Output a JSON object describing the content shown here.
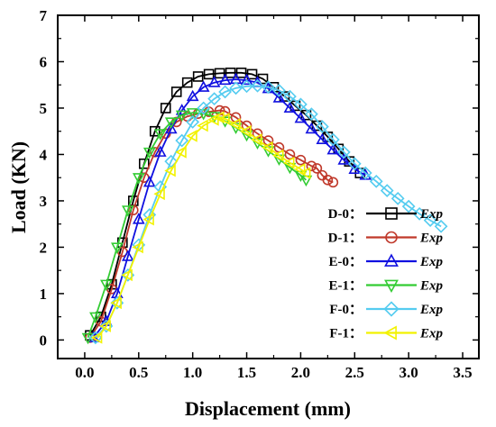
{
  "chart_data": {
    "type": "line",
    "xlabel": "Displacement (mm)",
    "ylabel": "Load (KN)",
    "xlim": [
      -0.25,
      3.65
    ],
    "ylim": [
      -0.4,
      7
    ],
    "xticks": [
      "0.0",
      "0.5",
      "1.0",
      "1.5",
      "2.0",
      "2.5",
      "3.0",
      "3.5"
    ],
    "yticks": [
      "0",
      "1",
      "2",
      "3",
      "4",
      "5",
      "6",
      "7"
    ],
    "legend_suffix": "Exp",
    "legend_position": "right",
    "grid": false,
    "series": [
      {
        "name": "D-0：",
        "color": "#000000",
        "marker": "square",
        "x": [
          0.05,
          0.15,
          0.25,
          0.35,
          0.45,
          0.55,
          0.65,
          0.75,
          0.85,
          0.95,
          1.05,
          1.15,
          1.25,
          1.35,
          1.45,
          1.55,
          1.65,
          1.75,
          1.85,
          1.95,
          2.05,
          2.15,
          2.25,
          2.35,
          2.45,
          2.55
        ],
        "y": [
          0.1,
          0.5,
          1.2,
          2.1,
          3.0,
          3.8,
          4.5,
          5.0,
          5.35,
          5.55,
          5.68,
          5.73,
          5.75,
          5.76,
          5.76,
          5.73,
          5.63,
          5.45,
          5.25,
          5.05,
          4.85,
          4.62,
          4.38,
          4.12,
          3.85,
          3.6
        ]
      },
      {
        "name": "D-1：",
        "color": "#c0392b",
        "marker": "circle",
        "x": [
          0.05,
          0.15,
          0.25,
          0.35,
          0.45,
          0.55,
          0.65,
          0.75,
          0.85,
          0.95,
          1.05,
          1.15,
          1.25,
          1.3,
          1.4,
          1.5,
          1.6,
          1.7,
          1.8,
          1.9,
          2.0,
          2.1,
          2.15,
          2.2,
          2.25,
          2.3
        ],
        "y": [
          0.05,
          0.4,
          1.1,
          1.9,
          2.8,
          3.5,
          4.05,
          4.45,
          4.7,
          4.82,
          4.88,
          4.92,
          4.95,
          4.93,
          4.8,
          4.62,
          4.45,
          4.3,
          4.15,
          4.0,
          3.88,
          3.75,
          3.7,
          3.55,
          3.45,
          3.4
        ]
      },
      {
        "name": "E-0：",
        "color": "#1010e0",
        "marker": "triangle-up",
        "x": [
          0.08,
          0.2,
          0.3,
          0.4,
          0.5,
          0.6,
          0.7,
          0.8,
          0.9,
          1.0,
          1.1,
          1.2,
          1.3,
          1.4,
          1.5,
          1.6,
          1.7,
          1.8,
          1.9,
          2.0,
          2.1,
          2.2,
          2.3,
          2.4,
          2.5,
          2.6
        ],
        "y": [
          0.05,
          0.4,
          1.0,
          1.8,
          2.6,
          3.4,
          4.05,
          4.55,
          4.95,
          5.25,
          5.45,
          5.55,
          5.6,
          5.62,
          5.6,
          5.55,
          5.42,
          5.22,
          5.0,
          4.78,
          4.55,
          4.32,
          4.1,
          3.88,
          3.68,
          3.55
        ]
      },
      {
        "name": "E-1：",
        "color": "#33cc33",
        "marker": "triangle-down",
        "x": [
          0.03,
          0.1,
          0.2,
          0.3,
          0.4,
          0.5,
          0.6,
          0.7,
          0.8,
          0.9,
          1.0,
          1.1,
          1.2,
          1.3,
          1.4,
          1.5,
          1.6,
          1.7,
          1.8,
          1.9,
          2.0,
          2.05
        ],
        "y": [
          0.05,
          0.5,
          1.2,
          2.0,
          2.8,
          3.5,
          4.05,
          4.45,
          4.7,
          4.85,
          4.9,
          4.88,
          4.82,
          4.72,
          4.58,
          4.42,
          4.25,
          4.08,
          3.9,
          3.72,
          3.55,
          3.45
        ]
      },
      {
        "name": "F-0：",
        "color": "#55ccf0",
        "marker": "diamond",
        "x": [
          0.1,
          0.2,
          0.3,
          0.4,
          0.5,
          0.6,
          0.7,
          0.8,
          0.9,
          1.0,
          1.1,
          1.2,
          1.3,
          1.4,
          1.5,
          1.6,
          1.7,
          1.8,
          1.9,
          2.0,
          2.1,
          2.2,
          2.3,
          2.4,
          2.5,
          2.6,
          2.7,
          2.8,
          2.9,
          3.0,
          3.1,
          3.2,
          3.3
        ],
        "y": [
          0.05,
          0.3,
          0.8,
          1.4,
          2.05,
          2.7,
          3.3,
          3.85,
          4.3,
          4.7,
          5.0,
          5.2,
          5.35,
          5.43,
          5.47,
          5.48,
          5.45,
          5.38,
          5.25,
          5.08,
          4.87,
          4.6,
          4.32,
          4.05,
          3.8,
          3.6,
          3.42,
          3.22,
          3.05,
          2.88,
          2.72,
          2.58,
          2.45
        ]
      },
      {
        "name": "F-1：",
        "color": "#f2f200",
        "marker": "triangle-left",
        "x": [
          0.12,
          0.2,
          0.3,
          0.4,
          0.5,
          0.6,
          0.7,
          0.8,
          0.9,
          1.0,
          1.1,
          1.2,
          1.25,
          1.3,
          1.4,
          1.5,
          1.6,
          1.7,
          1.8,
          1.9,
          2.0,
          2.05
        ],
        "y": [
          0.05,
          0.3,
          0.8,
          1.4,
          2.0,
          2.6,
          3.15,
          3.65,
          4.05,
          4.4,
          4.62,
          4.75,
          4.8,
          4.77,
          4.65,
          4.5,
          4.32,
          4.15,
          3.98,
          3.82,
          3.68,
          3.6
        ]
      }
    ]
  }
}
